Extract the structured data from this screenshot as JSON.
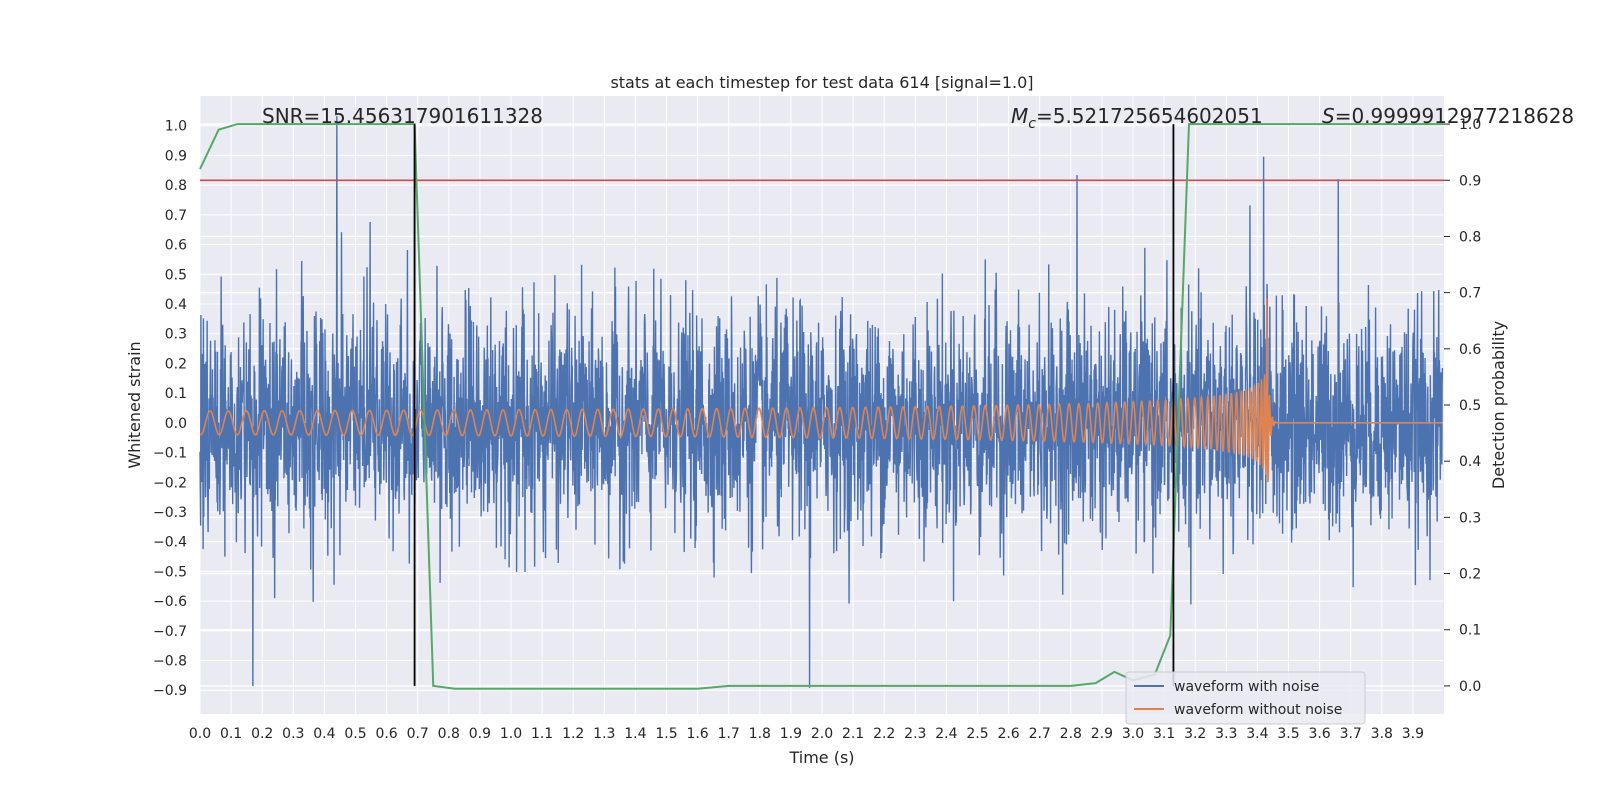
{
  "chart_data": {
    "type": "line",
    "title": "stats at each timestep for test data 614 [signal=1.0]",
    "xlabel": "Time (s)",
    "ylabel": "Whitened strain",
    "y2label": "Detection probability",
    "xlim": [
      0.0,
      4.0
    ],
    "ylim": [
      -0.98,
      1.1
    ],
    "y2lim": [
      -0.05,
      1.05
    ],
    "xticks": [
      0.0,
      0.1,
      0.2,
      0.3,
      0.4,
      0.5,
      0.6,
      0.7,
      0.8,
      0.9,
      1.0,
      1.1,
      1.2,
      1.3,
      1.4,
      1.5,
      1.6,
      1.7,
      1.8,
      1.9,
      2.0,
      2.1,
      2.2,
      2.3,
      2.4,
      2.5,
      2.6,
      2.7,
      2.8,
      2.9,
      3.0,
      3.1,
      3.2,
      3.3,
      3.4,
      3.5,
      3.6,
      3.7,
      3.8,
      3.9
    ],
    "xtick_labels": [
      "0.0",
      "0.1",
      "0.2",
      "0.3",
      "0.4",
      "0.5",
      "0.6",
      "0.7",
      "0.8",
      "0.9",
      "1.0",
      "1.1",
      "1.2",
      "1.3",
      "1.4",
      "1.5",
      "1.6",
      "1.7",
      "1.8",
      "1.9",
      "2.0",
      "2.1",
      "2.2",
      "2.3",
      "2.4",
      "2.5",
      "2.6",
      "2.7",
      "2.8",
      "2.9",
      "3.0",
      "3.1",
      "3.2",
      "3.3",
      "3.4",
      "3.5",
      "3.6",
      "3.7",
      "3.8",
      "3.9"
    ],
    "yticks": [
      1.0,
      0.9,
      0.8,
      0.7,
      0.6,
      0.5,
      0.4,
      0.3,
      0.2,
      0.1,
      0.0,
      -0.1,
      -0.2,
      -0.3,
      -0.4,
      -0.5,
      -0.6,
      -0.7,
      -0.8,
      -0.9
    ],
    "ytick_labels": [
      "1.0",
      "0.9",
      "0.8",
      "0.7",
      "0.6",
      "0.5",
      "0.4",
      "0.3",
      "0.2",
      "0.1",
      "0.0",
      "−0.1",
      "−0.2",
      "−0.3",
      "−0.4",
      "−0.5",
      "−0.6",
      "−0.7",
      "−0.8",
      "−0.9"
    ],
    "y2ticks": [
      1.0,
      0.9,
      0.8,
      0.7,
      0.6,
      0.5,
      0.4,
      0.3,
      0.2,
      0.1,
      0.0
    ],
    "y2tick_labels": [
      "1.0",
      "0.9",
      "0.8",
      "0.7",
      "0.6",
      "0.5",
      "0.4",
      "0.3",
      "0.2",
      "0.1",
      "0.0"
    ],
    "noise_series": {
      "name": "waveform with noise",
      "color": "#4c72b0",
      "spikes": [
        {
          "x": 0.44,
          "y": 1.0
        },
        {
          "x": 0.69,
          "y": 0.98
        },
        {
          "x": 2.82,
          "y": 0.81
        },
        {
          "x": 3.42,
          "y": 0.95
        },
        {
          "x": 3.66,
          "y": 0.82
        },
        {
          "x": 1.96,
          "y": -0.88
        },
        {
          "x": 0.17,
          "y": -0.86
        }
      ]
    },
    "clean_series": {
      "name": "waveform without noise",
      "color": "#dd8452",
      "merger_time": 3.43,
      "peak_amplitude": 0.42,
      "initial_amplitude": 0.04
    },
    "probability_series": {
      "name": "Detection probability",
      "color": "#55a868",
      "x": [
        0.0,
        0.06,
        0.12,
        0.69,
        0.75,
        0.82,
        1.6,
        1.7,
        2.8,
        2.88,
        2.94,
        3.0,
        3.07,
        3.12,
        3.18,
        3.9,
        4.0
      ],
      "y": [
        0.92,
        0.99,
        1.0,
        1.0,
        0.0,
        -0.005,
        -0.005,
        0.0,
        0.0,
        0.005,
        0.025,
        0.01,
        0.02,
        0.09,
        1.0,
        1.0,
        1.0
      ]
    },
    "threshold_line": {
      "y2": 0.9,
      "color": "#c44e52"
    },
    "vertical_markers": [
      {
        "x": 0.69,
        "color": "#000000"
      },
      {
        "x": 3.13,
        "color": "#000000"
      }
    ],
    "annotations": {
      "snr": "SNR=15.456317901611328",
      "mc_symbol": "M",
      "mc_subscript": "c",
      "mc_value": "=5.521725654602051",
      "s_prefix": "S",
      "s_value": "=0.9999912977218628"
    },
    "legend_position": "bottom-right",
    "grid": true
  },
  "colors": {
    "plot_background": "#eaeaf2",
    "grid": "#ffffff",
    "text": "#262626"
  }
}
